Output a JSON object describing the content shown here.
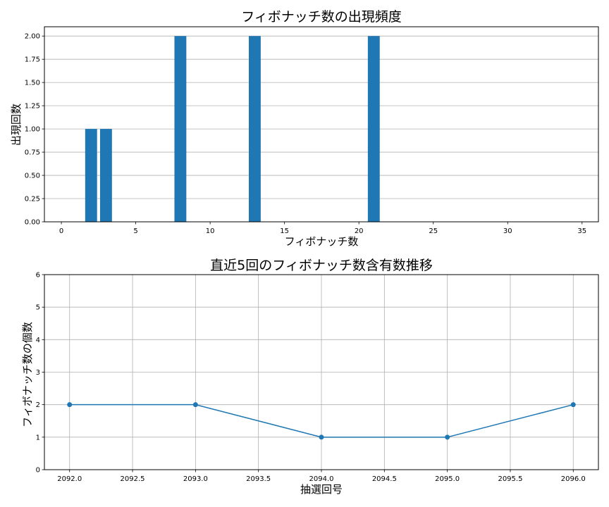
{
  "chart_data": [
    {
      "type": "bar",
      "title": "フィボナッチ数の出現頻度",
      "xlabel": "フィボナッチ数",
      "ylabel": "出現回数",
      "x": [
        2,
        3,
        8,
        13,
        21
      ],
      "values": [
        1,
        1,
        2,
        2,
        2
      ],
      "xlim": [
        -1.14,
        36.1
      ],
      "ylim": [
        0,
        2.1
      ],
      "xticks": [
        0,
        5,
        10,
        15,
        20,
        25,
        30,
        35
      ],
      "xtick_labels": [
        "0",
        "5",
        "10",
        "15",
        "20",
        "25",
        "30",
        "35"
      ],
      "yticks": [
        0,
        0.25,
        0.5,
        0.75,
        1.0,
        1.25,
        1.5,
        1.75,
        2.0
      ],
      "ytick_labels": [
        "0.00",
        "0.25",
        "0.50",
        "0.75",
        "1.00",
        "1.25",
        "1.50",
        "1.75",
        "2.00"
      ],
      "grid": "y",
      "color": "#1f77b4",
      "bar_width": 0.8
    },
    {
      "type": "line",
      "title": "直近5回のフィボナッチ数含有数推移",
      "xlabel": "抽選回号",
      "ylabel": "フィボナッチ数の個数",
      "x": [
        2092,
        2093,
        2094,
        2095,
        2096
      ],
      "values": [
        2,
        2,
        1,
        1,
        2
      ],
      "xlim": [
        2091.8,
        2096.2
      ],
      "ylim": [
        0,
        6
      ],
      "xticks": [
        2092.0,
        2092.5,
        2093.0,
        2093.5,
        2094.0,
        2094.5,
        2095.0,
        2095.5,
        2096.0
      ],
      "xtick_labels": [
        "2092.0",
        "2092.5",
        "2093.0",
        "2093.5",
        "2094.0",
        "2094.5",
        "2095.0",
        "2095.5",
        "2096.0"
      ],
      "yticks": [
        0,
        1,
        2,
        3,
        4,
        5,
        6
      ],
      "ytick_labels": [
        "0",
        "1",
        "2",
        "3",
        "4",
        "5",
        "6"
      ],
      "grid": "both",
      "color": "#1f77b4",
      "marker": "o"
    }
  ]
}
